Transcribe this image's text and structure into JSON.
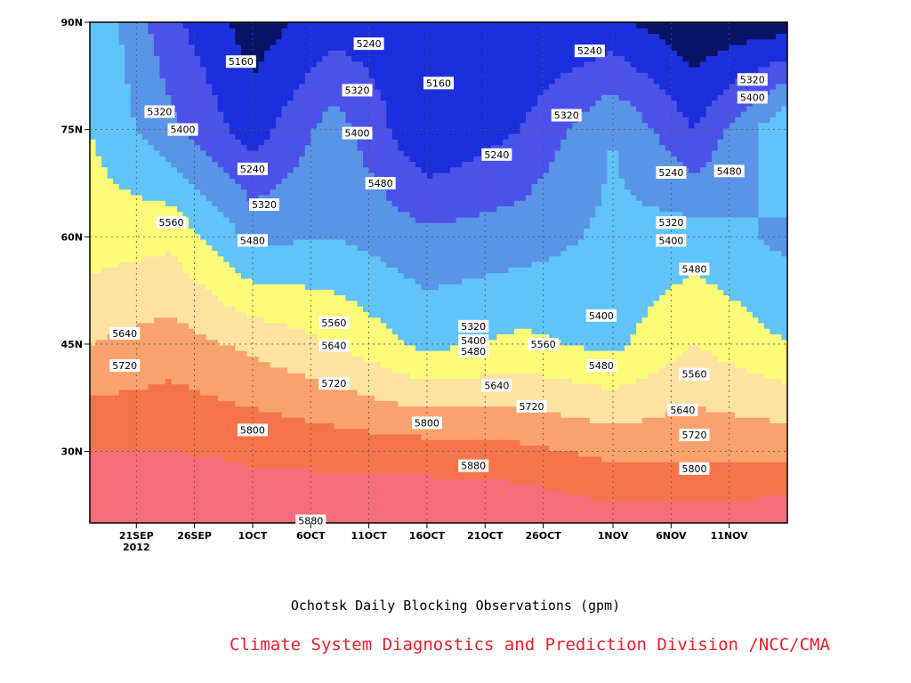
{
  "chart_data": {
    "type": "heatmap",
    "title": "Ochotsk Daily Blocking Observations (gpm)",
    "credit": "Climate System Diagnostics and Prediction Division /NCC/CMA",
    "x_axis": {
      "type": "date",
      "range": [
        "2012-09-17",
        "2012-11-16"
      ],
      "ticks": [
        {
          "date": "2012-09-21",
          "label": "21SEP",
          "sublabel": "2012"
        },
        {
          "date": "2012-09-26",
          "label": "26SEP"
        },
        {
          "date": "2012-10-01",
          "label": "1OCT"
        },
        {
          "date": "2012-10-06",
          "label": "6OCT"
        },
        {
          "date": "2012-10-11",
          "label": "11OCT"
        },
        {
          "date": "2012-10-16",
          "label": "16OCT"
        },
        {
          "date": "2012-10-21",
          "label": "21OCT"
        },
        {
          "date": "2012-10-26",
          "label": "26OCT"
        },
        {
          "date": "2012-11-01",
          "label": "1NOV"
        },
        {
          "date": "2012-11-06",
          "label": "6NOV"
        },
        {
          "date": "2012-11-11",
          "label": "11NOV"
        }
      ]
    },
    "y_axis": {
      "range": [
        20,
        90
      ],
      "ticks": [
        {
          "value": 30,
          "label": "30N"
        },
        {
          "value": 45,
          "label": "45N"
        },
        {
          "value": 60,
          "label": "60N"
        },
        {
          "value": 75,
          "label": "75N"
        },
        {
          "value": 90,
          "label": "90N"
        }
      ]
    },
    "grid": true,
    "contour_levels": [
      5160,
      5240,
      5320,
      5400,
      5480,
      5560,
      5640,
      5720,
      5800,
      5880
    ],
    "level_colors": {
      "lt5160": "#0a1466",
      "5160": "#1c2fdc",
      "5240": "#4c52e8",
      "5320": "#5a94e6",
      "5400": "#60c4f8",
      "5480": "#fdfc78",
      "5560": "#fde2a2",
      "5640": "#f9a26e",
      "5720": "#f5744b",
      "5800": "#f66e7a",
      "5880": "#ee3348"
    },
    "sample_field": {
      "x_dates": [
        "2012-09-17",
        "2012-09-24",
        "2012-10-01",
        "2012-10-08",
        "2012-10-16",
        "2012-10-24",
        "2012-11-01",
        "2012-11-08",
        "2012-11-16"
      ],
      "y_lat": [
        20,
        30,
        45,
        60,
        75,
        90
      ],
      "values": [
        [
          5880,
          5880,
          5840,
          5880,
          5880,
          5880,
          5840,
          5840,
          5860
        ],
        [
          5800,
          5800,
          5790,
          5770,
          5760,
          5740,
          5700,
          5700,
          5700
        ],
        [
          5640,
          5680,
          5620,
          5560,
          5460,
          5500,
          5460,
          5560,
          5480
        ],
        [
          5520,
          5540,
          5380,
          5400,
          5340,
          5360,
          5420,
          5440,
          5380
        ],
        [
          5480,
          5340,
          5200,
          5360,
          5160,
          5240,
          5400,
          5240,
          5480
        ],
        [
          5480,
          5260,
          5120,
          5200,
          5200,
          5160,
          5180,
          5100,
          5120
        ]
      ]
    },
    "contour_labels": [
      {
        "text": "5160",
        "date": "2012-09-30",
        "lat": 84.5
      },
      {
        "text": "5240",
        "date": "2012-10-11",
        "lat": 87.0
      },
      {
        "text": "5320",
        "date": "2012-10-10",
        "lat": 80.5
      },
      {
        "text": "5160",
        "date": "2012-10-17",
        "lat": 81.5
      },
      {
        "text": "5240",
        "date": "2012-10-30",
        "lat": 86.0
      },
      {
        "text": "5320",
        "date": "2012-11-13",
        "lat": 82.0
      },
      {
        "text": "5400",
        "date": "2012-11-13",
        "lat": 79.5
      },
      {
        "text": "5320",
        "date": "2012-09-23",
        "lat": 77.5
      },
      {
        "text": "5400",
        "date": "2012-09-25",
        "lat": 75.0
      },
      {
        "text": "5400",
        "date": "2012-10-10",
        "lat": 74.5
      },
      {
        "text": "5320",
        "date": "2012-10-28",
        "lat": 77.0
      },
      {
        "text": "5240",
        "date": "2012-10-22",
        "lat": 71.5
      },
      {
        "text": "5240",
        "date": "2012-10-01",
        "lat": 69.5
      },
      {
        "text": "5480",
        "date": "2012-10-12",
        "lat": 67.5
      },
      {
        "text": "5240",
        "date": "2012-11-06",
        "lat": 69.0
      },
      {
        "text": "5480",
        "date": "2012-11-11",
        "lat": 69.2
      },
      {
        "text": "5320",
        "date": "2012-10-02",
        "lat": 64.5
      },
      {
        "text": "5560",
        "date": "2012-09-24",
        "lat": 62.0
      },
      {
        "text": "5320",
        "date": "2012-11-06",
        "lat": 62.0
      },
      {
        "text": "5480",
        "date": "2012-10-01",
        "lat": 59.5
      },
      {
        "text": "5400",
        "date": "2012-11-06",
        "lat": 59.5
      },
      {
        "text": "5480",
        "date": "2012-11-08",
        "lat": 55.5
      },
      {
        "text": "5400",
        "date": "2012-10-31",
        "lat": 49.0
      },
      {
        "text": "5560",
        "date": "2012-10-08",
        "lat": 48.0
      },
      {
        "text": "5640",
        "date": "2012-09-20",
        "lat": 46.5
      },
      {
        "text": "5320",
        "date": "2012-10-20",
        "lat": 47.5
      },
      {
        "text": "5400",
        "date": "2012-10-20",
        "lat": 45.5
      },
      {
        "text": "5560",
        "date": "2012-10-26",
        "lat": 45.0
      },
      {
        "text": "5480",
        "date": "2012-10-20",
        "lat": 44.0
      },
      {
        "text": "5640",
        "date": "2012-10-08",
        "lat": 44.8
      },
      {
        "text": "5480",
        "date": "2012-10-31",
        "lat": 42.0
      },
      {
        "text": "5720",
        "date": "2012-09-20",
        "lat": 42.0
      },
      {
        "text": "5560",
        "date": "2012-11-08",
        "lat": 40.8
      },
      {
        "text": "5720",
        "date": "2012-10-08",
        "lat": 39.5
      },
      {
        "text": "5640",
        "date": "2012-10-22",
        "lat": 39.2
      },
      {
        "text": "5720",
        "date": "2012-10-25",
        "lat": 36.3
      },
      {
        "text": "5640",
        "date": "2012-11-07",
        "lat": 35.8
      },
      {
        "text": "5800",
        "date": "2012-10-01",
        "lat": 33.0
      },
      {
        "text": "5800",
        "date": "2012-10-16",
        "lat": 34.0
      },
      {
        "text": "5720",
        "date": "2012-11-08",
        "lat": 32.3
      },
      {
        "text": "5800",
        "date": "2012-11-08",
        "lat": 27.6
      },
      {
        "text": "5880",
        "date": "2012-10-20",
        "lat": 28.0
      },
      {
        "text": "5880",
        "date": "2012-10-06",
        "lat": 20.3
      }
    ]
  }
}
